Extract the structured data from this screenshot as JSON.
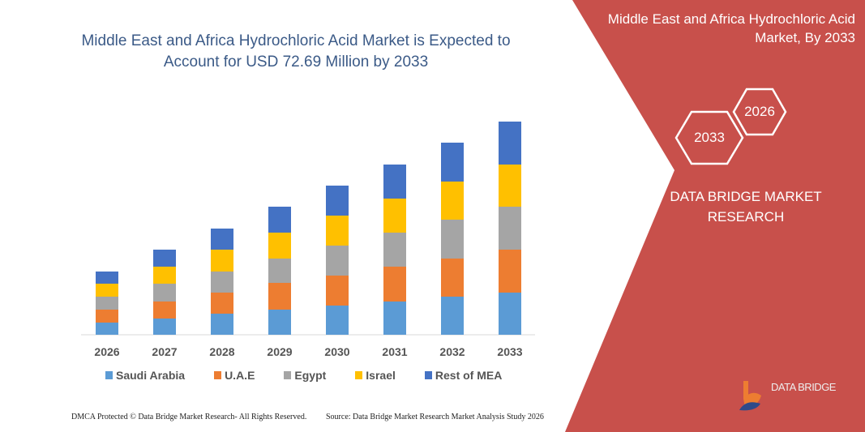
{
  "header": {
    "title": "Middle East and Africa Hydrochloric Acid Market is Expected to Account for USD 72.69 Million by 2033",
    "right_title": "Middle East and Africa Hydrochloric Acid Market, By 2033"
  },
  "side_panel": {
    "hex_years": [
      "2026",
      "2033"
    ],
    "brand": "DATA BRIDGE MARKET RESEARCH",
    "logo_text": "DATA BRIDGE",
    "color": "#c8504b"
  },
  "footer": {
    "copyright": "DMCA Protected © Data Bridge Market Research-  All Rights Reserved.",
    "source": "Source: Data Bridge Market Research  Market Analysis Study 2026"
  },
  "chart_data": {
    "type": "bar",
    "stacked": true,
    "categories": [
      "2026",
      "2027",
      "2028",
      "2029",
      "2030",
      "2031",
      "2032",
      "2033"
    ],
    "series": [
      {
        "name": "Saudi Arabia",
        "color": "#5b9bd5",
        "values": [
          15,
          20,
          26,
          31,
          36,
          41,
          47,
          52
        ]
      },
      {
        "name": "U.A.E",
        "color": "#ed7d31",
        "values": [
          16,
          21,
          26,
          33,
          37,
          43,
          47,
          53
        ]
      },
      {
        "name": "Egypt",
        "color": "#a5a5a5",
        "values": [
          16,
          22,
          26,
          30,
          37,
          42,
          48,
          53
        ]
      },
      {
        "name": "Israel",
        "color": "#ffc000",
        "values": [
          16,
          21,
          27,
          32,
          37,
          42,
          47,
          52
        ]
      },
      {
        "name": "Rest of MEA",
        "color": "#4472c4",
        "values": [
          15,
          21,
          26,
          32,
          37,
          42,
          48,
          53
        ]
      }
    ],
    "y_axis_shown": false,
    "grid": false,
    "legend_position": "bottom"
  }
}
